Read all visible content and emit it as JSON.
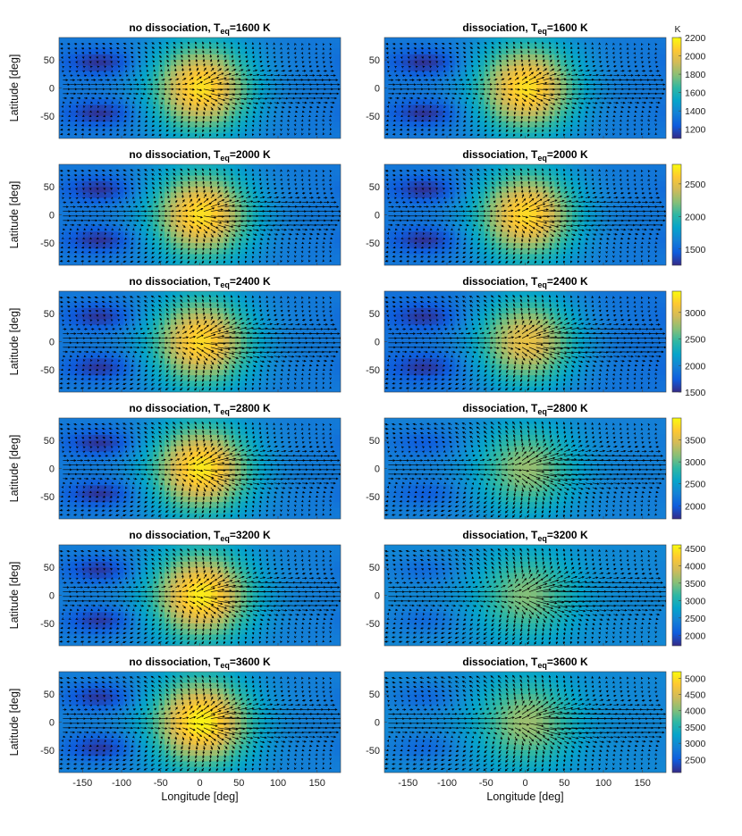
{
  "chart_data": {
    "type": "heatmap",
    "description_free": true,
    "xlabel": "Longitude [deg]",
    "ylabel": "Latitude [deg]",
    "xlim": [
      -180,
      180
    ],
    "ylim": [
      -90,
      90
    ],
    "xticks": [
      -150,
      -100,
      -50,
      0,
      50,
      100,
      150
    ],
    "yticks": [
      50,
      0,
      -50
    ],
    "colorbar_unit": "K",
    "rows": [
      {
        "teq": 1600,
        "left_title": "no dissociation, T_eq=1600 K",
        "right_title": "dissociation, T_eq=1600 K",
        "left_parts": [
          "no dissociation, T",
          "eq",
          "=1600 K"
        ],
        "right_parts": [
          "dissociation, T",
          "eq",
          "=1600 K"
        ],
        "cbar_range": [
          1100,
          2200
        ],
        "cbar_ticks": [
          1200,
          1400,
          1600,
          1800,
          2000,
          2200
        ],
        "left_temp_range": [
          1120,
          2130
        ],
        "right_temp_range": [
          1120,
          2130
        ],
        "left_wind": 0.8,
        "right_wind": 0.8
      },
      {
        "teq": 2000,
        "left_title": "no dissociation, T_eq=2000 K",
        "right_title": "dissociation, T_eq=2000 K",
        "left_parts": [
          "no dissociation, T",
          "eq",
          "=2000 K"
        ],
        "right_parts": [
          "dissociation, T",
          "eq",
          "=2000 K"
        ],
        "cbar_range": [
          1250,
          2800
        ],
        "cbar_ticks": [
          1500,
          2000,
          2500
        ],
        "left_temp_range": [
          1280,
          2700
        ],
        "right_temp_range": [
          1280,
          2680
        ],
        "left_wind": 0.9,
        "right_wind": 0.9
      },
      {
        "teq": 2400,
        "left_title": "no dissociation, T_eq=2400 K",
        "right_title": "dissociation, T_eq=2400 K",
        "left_parts": [
          "no dissociation, T",
          "eq",
          "=2400 K"
        ],
        "right_parts": [
          "dissociation, T",
          "eq",
          "=2400 K"
        ],
        "cbar_range": [
          1500,
          3400
        ],
        "cbar_ticks": [
          1500,
          2000,
          2500,
          3000
        ],
        "left_temp_range": [
          1550,
          3250
        ],
        "right_temp_range": [
          1550,
          3050
        ],
        "left_wind": 1.0,
        "right_wind": 1.0
      },
      {
        "teq": 2800,
        "left_title": "no dissociation, T_eq=2800 K",
        "right_title": "dissociation, T_eq=2800 K",
        "left_parts": [
          "no dissociation, T",
          "eq",
          "=2800 K"
        ],
        "right_parts": [
          "dissociation, T",
          "eq",
          "=2800 K"
        ],
        "cbar_range": [
          1700,
          4000
        ],
        "cbar_ticks": [
          2000,
          2500,
          3000,
          3500
        ],
        "left_temp_range": [
          1750,
          3900
        ],
        "right_temp_range": [
          2000,
          3200
        ],
        "left_wind": 1.0,
        "right_wind": 1.1
      },
      {
        "teq": 3200,
        "left_title": "no dissociation, T_eq=3200 K",
        "right_title": "dissociation, T_eq=3200 K",
        "left_parts": [
          "no dissociation, T",
          "eq",
          "=3200 K"
        ],
        "right_parts": [
          "dissociation, T",
          "eq",
          "=3200 K"
        ],
        "cbar_range": [
          1700,
          4600
        ],
        "cbar_ticks": [
          2000,
          2500,
          3000,
          3500,
          4000,
          4500
        ],
        "left_temp_range": [
          1800,
          4500
        ],
        "right_temp_range": [
          2200,
          3500
        ],
        "left_wind": 1.0,
        "right_wind": 1.1
      },
      {
        "teq": 3600,
        "left_title": "no dissociation, T_eq=3600 K",
        "right_title": "dissociation, T_eq=3600 K",
        "left_parts": [
          "no dissociation, T",
          "eq",
          "=3600 K"
        ],
        "right_parts": [
          "dissociation, T",
          "eq",
          "=3600 K"
        ],
        "cbar_range": [
          2100,
          5200
        ],
        "cbar_ticks": [
          2500,
          3000,
          3500,
          4000,
          4500,
          5000
        ],
        "left_temp_range": [
          2200,
          5150
        ],
        "right_temp_range": [
          2600,
          4150
        ],
        "left_wind": 1.05,
        "right_wind": 1.1
      }
    ]
  }
}
